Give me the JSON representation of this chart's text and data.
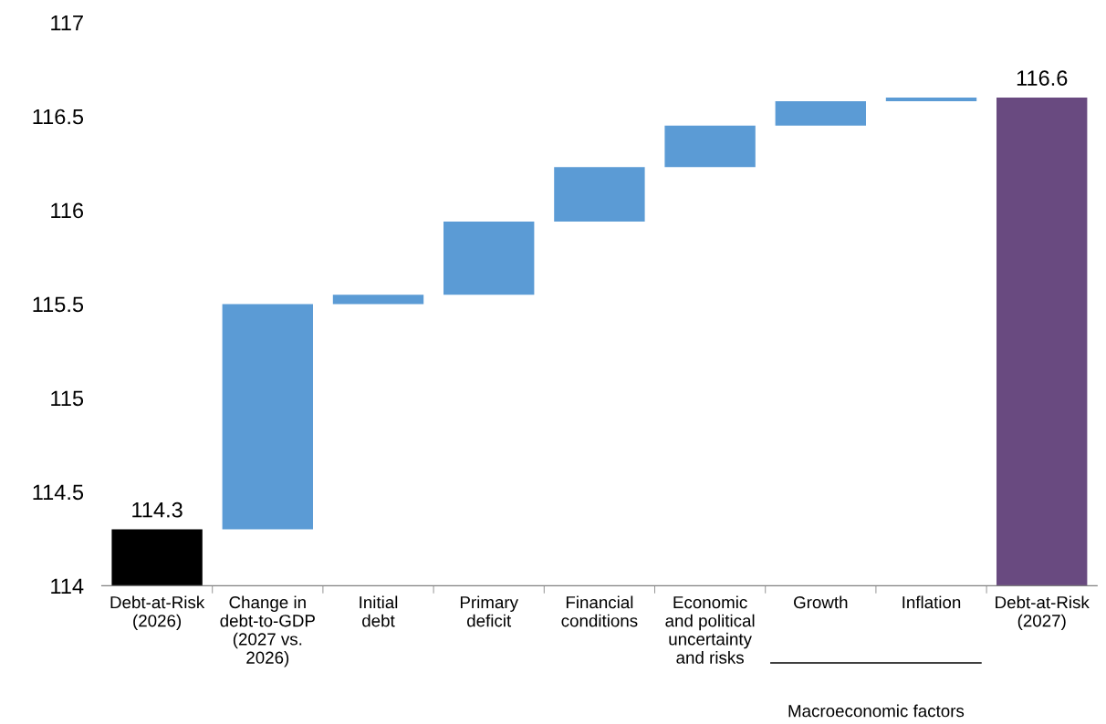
{
  "chart_data": {
    "type": "bar",
    "categories": [
      "Debt-at-Risk\n(2026)",
      "Change in\ndebt-to-GDP\n(2027 vs.\n2026)",
      "Initial\ndebt",
      "Primary\ndeficit",
      "Financial\nconditions",
      "Economic\nand political\nuncertainty\nand risks",
      "Growth",
      "Inflation",
      "Debt-at-Risk\n(2027)"
    ],
    "values": [
      114.3,
      1.2,
      0.05,
      0.39,
      0.29,
      0.22,
      0.13,
      0.02,
      116.6
    ],
    "base": [
      0,
      114.3,
      115.5,
      115.55,
      115.94,
      116.23,
      116.45,
      116.58,
      0
    ],
    "colors": [
      "#000000",
      "#5b9bd5",
      "#5b9bd5",
      "#5b9bd5",
      "#5b9bd5",
      "#5b9bd5",
      "#5b9bd5",
      "#5b9bd5",
      "#694a80"
    ],
    "value_labels": [
      "114.3",
      null,
      null,
      null,
      null,
      null,
      null,
      null,
      "116.6"
    ],
    "ylim": [
      114,
      117
    ],
    "yticks": [
      114,
      114.5,
      115,
      115.5,
      116,
      116.5,
      117
    ],
    "annotations": [
      "Macroeconomic factors"
    ],
    "grid": false,
    "legend": false
  }
}
